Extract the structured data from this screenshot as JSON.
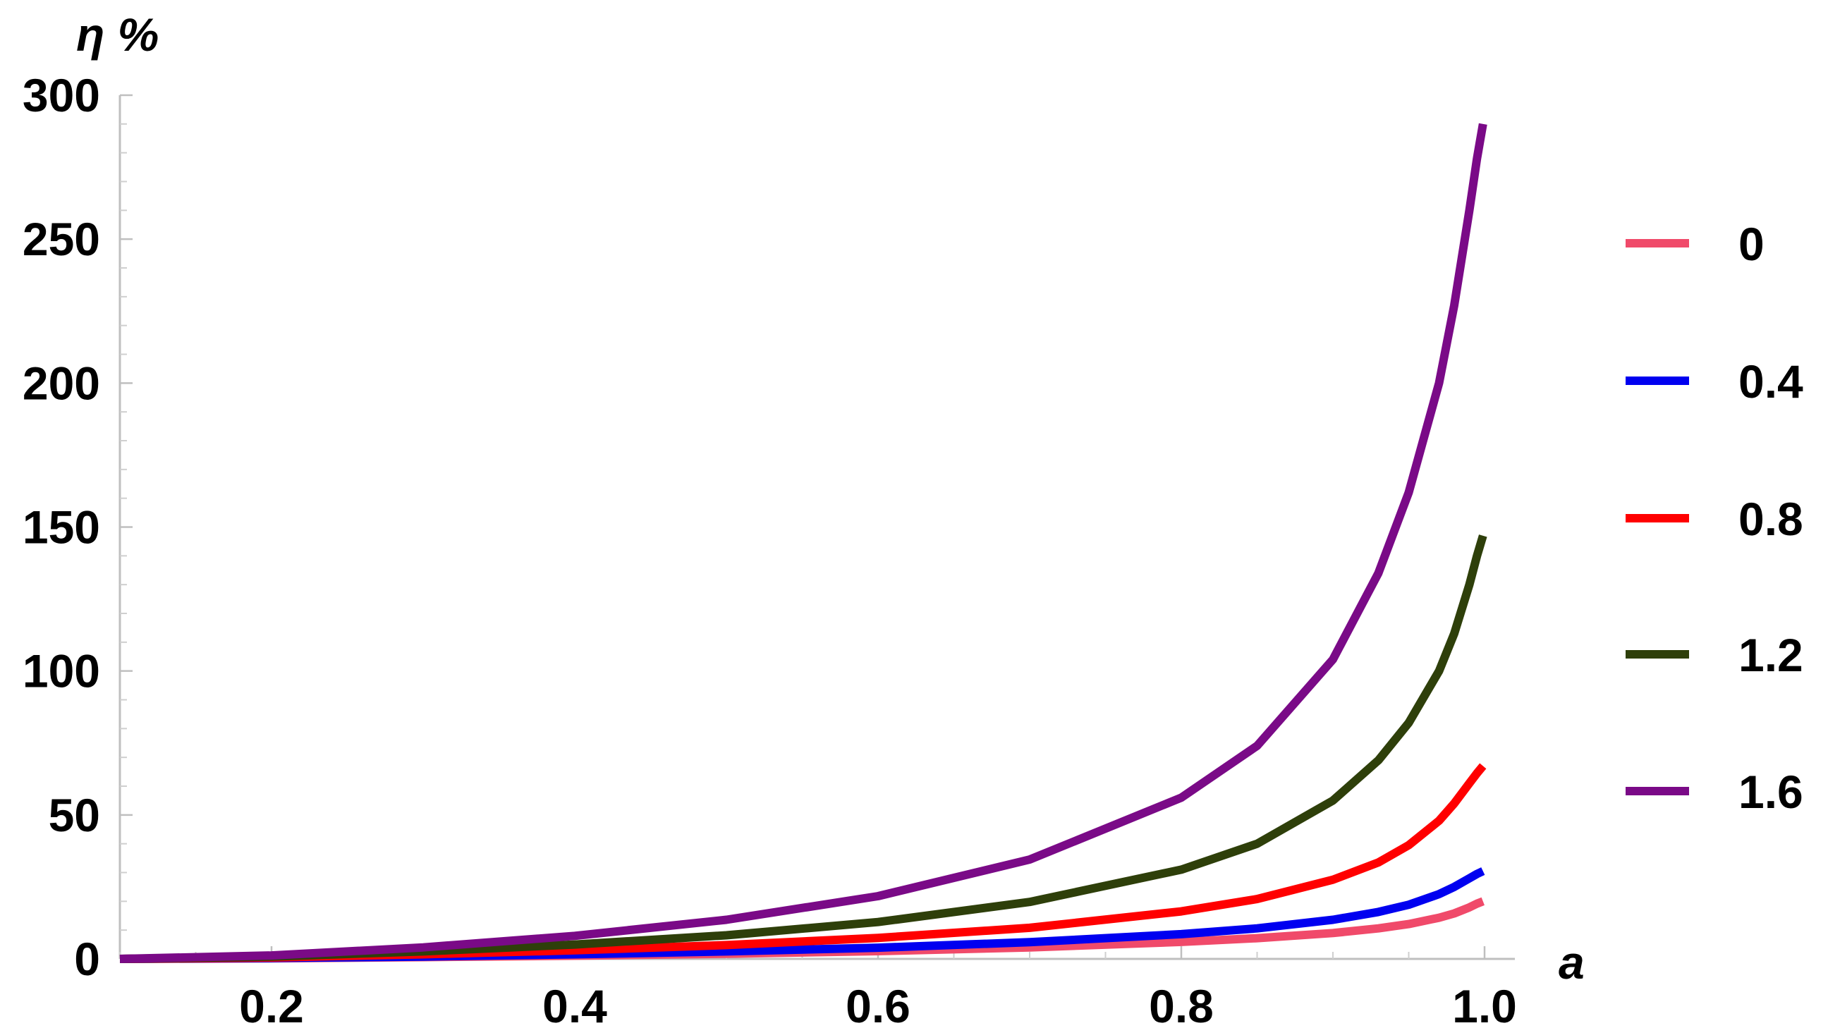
{
  "chart_data": {
    "type": "line",
    "xlabel": "a",
    "ylabel": "η %",
    "xlim": [
      0.1,
      1.02
    ],
    "ylim": [
      0,
      300
    ],
    "x_ticks": [
      "0.2",
      "0.4",
      "0.6",
      "0.8",
      "1.0"
    ],
    "y_ticks": [
      "0",
      "50",
      "100",
      "150",
      "200",
      "250",
      "300"
    ],
    "legend_position": "right",
    "grid": false,
    "x": [
      0.1,
      0.2,
      0.3,
      0.4,
      0.5,
      0.6,
      0.7,
      0.8,
      0.85,
      0.9,
      0.93,
      0.95,
      0.97,
      0.98,
      0.99,
      0.995,
      0.999
    ],
    "series": [
      {
        "name": "0",
        "color": "#f04a6a",
        "values": [
          0,
          0.2,
          0.6,
          1.1,
          1.8,
          2.7,
          4.0,
          5.9,
          7.2,
          9.0,
          10.6,
          12.1,
          14.3,
          15.8,
          17.9,
          19.2,
          20.0
        ]
      },
      {
        "name": "0.4",
        "color": "#0000f0",
        "values": [
          0,
          0.3,
          0.8,
          1.6,
          2.6,
          3.9,
          5.8,
          8.6,
          10.6,
          13.6,
          16.3,
          18.8,
          22.5,
          25.0,
          28.0,
          29.5,
          30.5
        ]
      },
      {
        "name": "0.8",
        "color": "#ff0000",
        "values": [
          0,
          0.5,
          1.6,
          3.0,
          4.8,
          7.3,
          10.8,
          16.5,
          20.8,
          27.5,
          33.5,
          39.5,
          48.0,
          54.0,
          61.0,
          64.5,
          67.0
        ]
      },
      {
        "name": "1.2",
        "color": "#2e3f0a",
        "values": [
          0,
          0.8,
          2.6,
          5.0,
          8.2,
          12.8,
          19.8,
          31.0,
          40.0,
          55.0,
          69.0,
          82.0,
          100.0,
          113.0,
          130.0,
          140.0,
          147.0
        ]
      },
      {
        "name": "1.6",
        "color": "#7a0a87",
        "values": [
          0,
          1.2,
          4.0,
          8.0,
          13.6,
          21.8,
          34.5,
          56.0,
          74.0,
          104.0,
          134.0,
          162.0,
          200.0,
          227.0,
          260.0,
          278.0,
          290.0
        ]
      }
    ]
  }
}
